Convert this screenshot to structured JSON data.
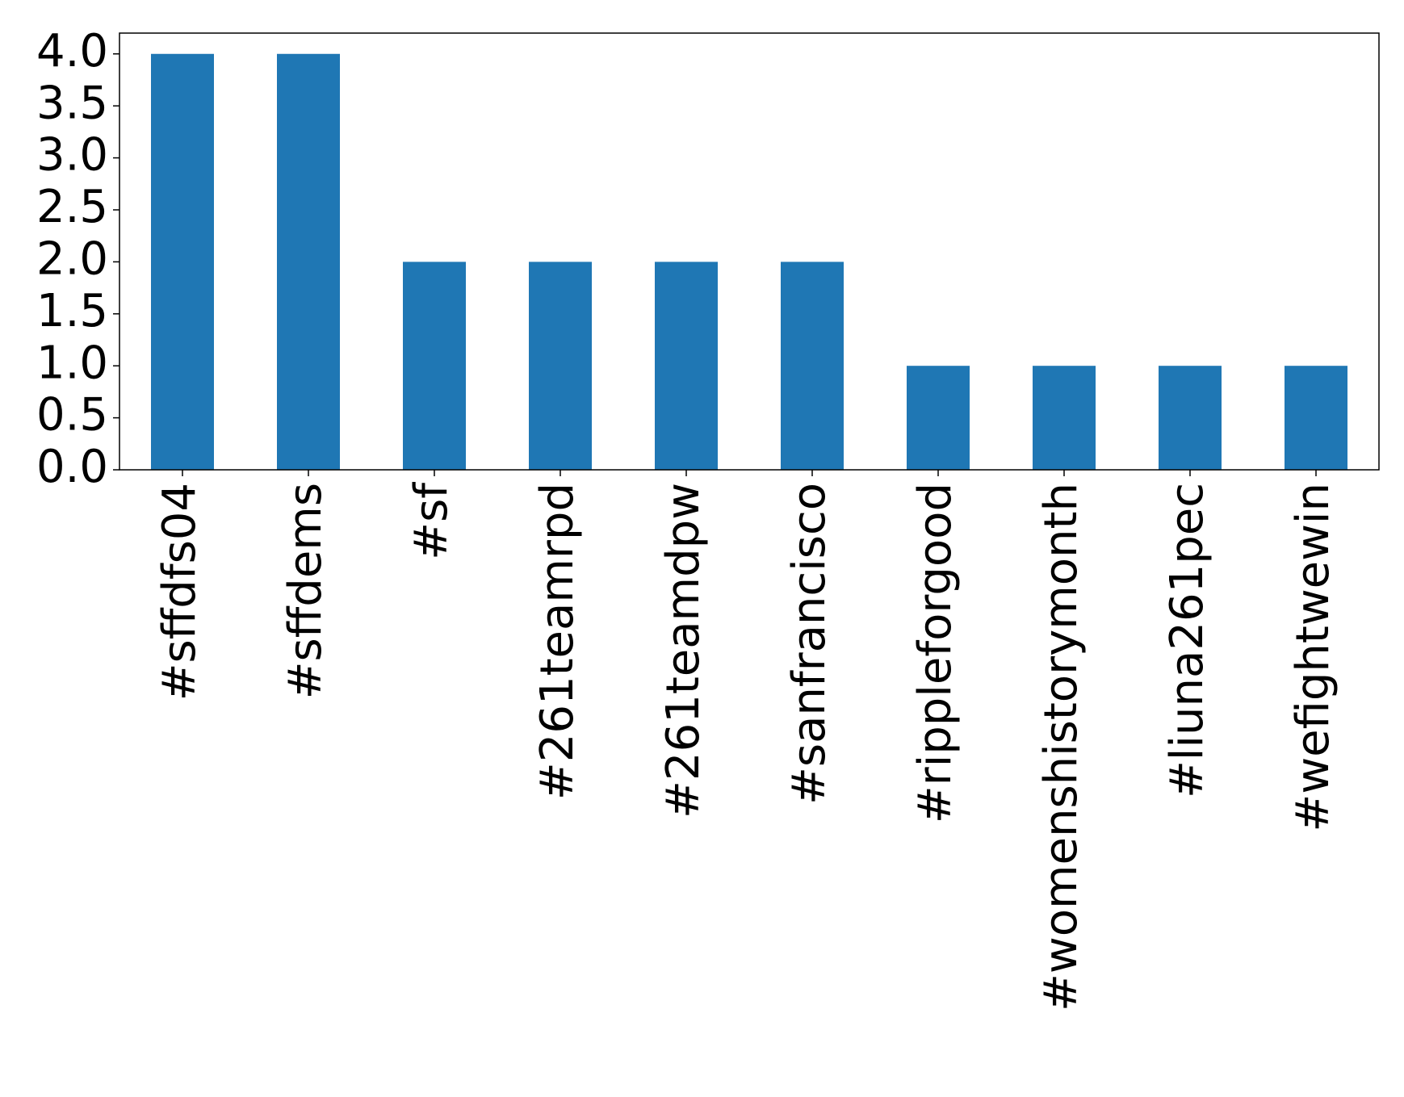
{
  "chart_data": {
    "type": "bar",
    "categories": [
      "#sffdfs04",
      "#sffdems",
      "#sf",
      "#261teamrpd",
      "#261teamdpw",
      "#sanfrancisco",
      "#rippleforgood",
      "#womenshistorymonth",
      "#liuna261pec",
      "#wefightwewin"
    ],
    "values": [
      4,
      4,
      2,
      2,
      2,
      2,
      1,
      1,
      1,
      1
    ],
    "color": "#1f77b4",
    "ylim": [
      0,
      4.2
    ],
    "yticks": [
      {
        "value": 0,
        "label": "0.0"
      },
      {
        "value": 0.5,
        "label": "0.5"
      },
      {
        "value": 1,
        "label": "1.0"
      },
      {
        "value": 1.5,
        "label": "1.5"
      },
      {
        "value": 2,
        "label": "2.0"
      },
      {
        "value": 2.5,
        "label": "2.5"
      },
      {
        "value": 3,
        "label": "3.0"
      },
      {
        "value": 3.5,
        "label": "3.5"
      },
      {
        "value": 4,
        "label": "4.0"
      }
    ],
    "grid": false
  }
}
